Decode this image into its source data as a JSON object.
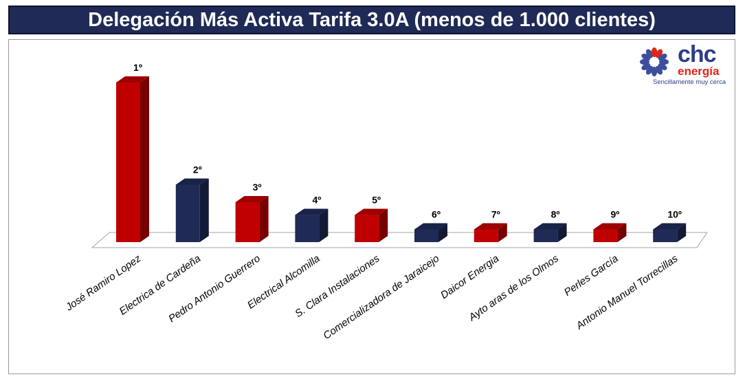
{
  "header": {
    "title": "Delegación Más Activa Tarifa 3.0A (menos de 1.000 clientes)"
  },
  "logo": {
    "name": "chc",
    "subname": "energía",
    "tagline": "Sencillamente muy cerca"
  },
  "colors": {
    "red": "#c00000",
    "navy": "#1f2a56",
    "title_bg": "#1f2a56"
  },
  "chart_data": {
    "type": "bar",
    "title": "Delegación Más Activa Tarifa 3.0A (menos de 1.000 clientes)",
    "xlabel": "",
    "ylabel": "",
    "ylim": [
      0,
      100
    ],
    "categories": [
      "José Ramiro Lopez",
      "Electrica de Cardeña",
      "Pedro Antonio Guerrero",
      "Electrical Alcomilla",
      "S. Clara Instalaciones",
      "Comercializadora de Jaraicejo",
      "Daicor Energia",
      "Ayto aras de los Olmos",
      "Perles García",
      "Antonio Manuel Torrecillas"
    ],
    "values": [
      100,
      36,
      25,
      17,
      17,
      8,
      8,
      8,
      8,
      8
    ],
    "labels": [
      "1º",
      "2º",
      "3º",
      "4º",
      "5º",
      "6º",
      "7º",
      "8º",
      "9º",
      "10º"
    ],
    "bar_colors": [
      "red",
      "navy",
      "red",
      "navy",
      "red",
      "navy",
      "red",
      "navy",
      "red",
      "navy"
    ],
    "grid": false,
    "legend": "none"
  }
}
